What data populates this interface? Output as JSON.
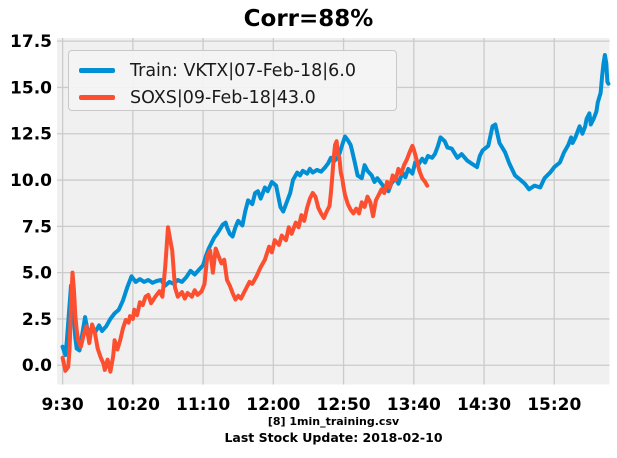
{
  "title": "Corr=88%",
  "footer": {
    "line1": "[8] 1min_training.csv",
    "line2": "Last Stock Update: 2018-02-10"
  },
  "legend": {
    "position": "upper-left",
    "entries": [
      {
        "label": "Train: VKTX|07-Feb-18|6.0",
        "color": "#008fd5"
      },
      {
        "label": "SOXS|09-Feb-18|43.0",
        "color": "#fc4f30"
      }
    ]
  },
  "chart_data": {
    "type": "line",
    "title": "Corr=88%",
    "xlabel": "[8] 1min_training.csv\nLast Stock Update: 2018-02-10",
    "ylabel": "",
    "grid": true,
    "x_unit": "minutes since 9:30",
    "x_tick_minutes": [
      0,
      50,
      100,
      150,
      200,
      250,
      300,
      350
    ],
    "x_tick_labels": [
      "9:30",
      "10:20",
      "11:10",
      "12:00",
      "12:50",
      "13:40",
      "14:30",
      "15:20"
    ],
    "y_ticks": [
      0,
      2.5,
      5,
      7.5,
      10,
      12.5,
      15,
      17.5
    ],
    "y_tick_labels": [
      "0.0",
      "2.5",
      "5.0",
      "7.5",
      "10.0",
      "12.5",
      "15.0",
      "17.5"
    ],
    "xlim_minutes": [
      -4,
      389.3
    ],
    "ylim": [
      -1.04,
      17.67
    ],
    "style": {
      "axes_bg": "#f0f0f0",
      "grid_color": "#cbcbcb",
      "figure_bg": "#ffffff",
      "text_color": "#000000",
      "line_width": 4
    },
    "series": [
      {
        "name": "Train: VKTX|07-Feb-18|6.0",
        "color": "#008fd5",
        "points": [
          [
            0,
            1.0
          ],
          [
            2,
            0.55
          ],
          [
            3,
            1.3
          ],
          [
            5,
            3.3
          ],
          [
            6,
            4.3
          ],
          [
            7,
            3.3
          ],
          [
            9,
            1.5
          ],
          [
            10,
            0.9
          ],
          [
            12,
            0.8
          ],
          [
            14,
            1.7
          ],
          [
            16,
            2.6
          ],
          [
            18,
            1.8
          ],
          [
            21,
            2.0
          ],
          [
            23,
            1.75
          ],
          [
            26,
            2.15
          ],
          [
            28,
            1.85
          ],
          [
            31,
            2.1
          ],
          [
            34,
            2.5
          ],
          [
            37,
            2.8
          ],
          [
            40,
            3.0
          ],
          [
            43,
            3.5
          ],
          [
            46,
            4.2
          ],
          [
            49,
            4.8
          ],
          [
            52,
            4.5
          ],
          [
            55,
            4.65
          ],
          [
            58,
            4.5
          ],
          [
            61,
            4.6
          ],
          [
            64,
            4.45
          ],
          [
            67,
            4.55
          ],
          [
            70,
            4.6
          ],
          [
            73,
            4.3
          ],
          [
            76,
            4.5
          ],
          [
            79,
            4.4
          ],
          [
            82,
            4.6
          ],
          [
            85,
            4.5
          ],
          [
            88,
            4.75
          ],
          [
            91,
            5.1
          ],
          [
            94,
            4.9
          ],
          [
            97,
            5.15
          ],
          [
            100,
            5.4
          ],
          [
            102,
            5.9
          ],
          [
            104,
            6.3
          ],
          [
            106,
            6.6
          ],
          [
            108,
            6.9
          ],
          [
            110,
            7.1
          ],
          [
            112,
            7.35
          ],
          [
            114,
            7.6
          ],
          [
            116,
            7.7
          ],
          [
            117,
            7.45
          ],
          [
            119,
            7.1
          ],
          [
            121,
            6.95
          ],
          [
            123,
            7.45
          ],
          [
            125,
            7.8
          ],
          [
            128,
            7.55
          ],
          [
            130,
            8.3
          ],
          [
            132,
            8.9
          ],
          [
            135,
            8.7
          ],
          [
            137,
            9.3
          ],
          [
            139,
            9.4
          ],
          [
            141,
            9.0
          ],
          [
            144,
            9.6
          ],
          [
            146,
            9.4
          ],
          [
            149,
            9.9
          ],
          [
            152,
            9.7
          ],
          [
            153,
            9.3
          ],
          [
            155,
            8.55
          ],
          [
            157,
            8.3
          ],
          [
            160,
            8.9
          ],
          [
            162,
            9.3
          ],
          [
            164,
            10.0
          ],
          [
            167,
            10.4
          ],
          [
            169,
            10.25
          ],
          [
            171,
            10.5
          ],
          [
            174,
            10.35
          ],
          [
            176,
            10.6
          ],
          [
            178,
            10.4
          ],
          [
            181,
            10.55
          ],
          [
            184,
            10.45
          ],
          [
            187,
            10.7
          ],
          [
            189,
            10.9
          ],
          [
            191,
            11.2
          ],
          [
            193,
            11.0
          ],
          [
            195,
            11.15
          ],
          [
            197,
            11.4
          ],
          [
            199,
            11.9
          ],
          [
            201,
            12.35
          ],
          [
            203,
            12.15
          ],
          [
            205,
            11.9
          ],
          [
            206,
            11.6
          ],
          [
            208,
            10.95
          ],
          [
            210,
            10.25
          ],
          [
            213,
            10.1
          ],
          [
            215,
            10.8
          ],
          [
            217,
            10.5
          ],
          [
            220,
            10.25
          ],
          [
            222,
            9.9
          ],
          [
            224,
            10.1
          ],
          [
            227,
            9.8
          ],
          [
            229,
            9.6
          ],
          [
            232,
            9.4
          ],
          [
            234,
            9.8
          ],
          [
            237,
            10.1
          ],
          [
            239,
            9.8
          ],
          [
            242,
            10.4
          ],
          [
            244,
            10.15
          ],
          [
            246,
            10.6
          ],
          [
            249,
            10.35
          ],
          [
            251,
            10.95
          ],
          [
            253,
            10.8
          ],
          [
            256,
            11.15
          ],
          [
            258,
            10.95
          ],
          [
            260,
            11.3
          ],
          [
            263,
            11.2
          ],
          [
            265,
            11.4
          ],
          [
            267,
            11.8
          ],
          [
            269,
            12.3
          ],
          [
            272,
            12.1
          ],
          [
            274,
            11.75
          ],
          [
            277,
            11.7
          ],
          [
            281,
            11.2
          ],
          [
            284,
            11.4
          ],
          [
            288,
            11.05
          ],
          [
            291,
            10.9
          ],
          [
            295,
            10.7
          ],
          [
            297,
            11.3
          ],
          [
            299,
            11.6
          ],
          [
            303,
            11.85
          ],
          [
            306,
            12.9
          ],
          [
            308,
            13.0
          ],
          [
            311,
            12.0
          ],
          [
            315,
            11.5
          ],
          [
            318,
            10.9
          ],
          [
            322,
            10.25
          ],
          [
            326,
            10.0
          ],
          [
            329,
            9.8
          ],
          [
            332,
            9.5
          ],
          [
            336,
            9.7
          ],
          [
            340,
            9.6
          ],
          [
            343,
            10.1
          ],
          [
            347,
            10.4
          ],
          [
            350,
            10.7
          ],
          [
            354,
            10.95
          ],
          [
            357,
            11.5
          ],
          [
            360,
            11.9
          ],
          [
            362,
            12.3
          ],
          [
            363,
            12.0
          ],
          [
            365,
            12.3
          ],
          [
            367,
            12.7
          ],
          [
            368,
            12.9
          ],
          [
            370,
            12.5
          ],
          [
            372,
            12.9
          ],
          [
            373,
            13.3
          ],
          [
            375,
            13.6
          ],
          [
            376,
            13.0
          ],
          [
            378,
            13.3
          ],
          [
            380,
            13.7
          ],
          [
            381,
            14.2
          ],
          [
            383,
            14.7
          ],
          [
            384,
            15.6
          ],
          [
            385,
            16.3
          ],
          [
            386,
            16.75
          ],
          [
            387,
            16.3
          ],
          [
            387.8,
            15.3
          ],
          [
            388.5,
            15.2
          ]
        ]
      },
      {
        "name": "SOXS|09-Feb-18|43.0",
        "color": "#fc4f30",
        "points": [
          [
            0,
            0.4
          ],
          [
            1,
            0.05
          ],
          [
            2,
            -0.3
          ],
          [
            4,
            -0.1
          ],
          [
            5,
            0.9
          ],
          [
            6,
            3.2
          ],
          [
            7,
            5.0
          ],
          [
            8,
            4.1
          ],
          [
            9,
            2.7
          ],
          [
            10,
            1.9
          ],
          [
            11,
            1.35
          ],
          [
            13,
            1.0
          ],
          [
            15,
            1.65
          ],
          [
            17,
            2.1
          ],
          [
            19,
            1.2
          ],
          [
            21,
            2.2
          ],
          [
            23,
            1.75
          ],
          [
            25,
            0.9
          ],
          [
            27,
            0.45
          ],
          [
            29,
            0.1
          ],
          [
            30,
            -0.25
          ],
          [
            32,
            0.3
          ],
          [
            34,
            -0.35
          ],
          [
            36,
            0.5
          ],
          [
            37,
            1.35
          ],
          [
            39,
            0.85
          ],
          [
            41,
            1.35
          ],
          [
            43,
            2.0
          ],
          [
            45,
            2.45
          ],
          [
            47,
            2.3
          ],
          [
            48,
            2.65
          ],
          [
            50,
            2.5
          ],
          [
            51,
            3.0
          ],
          [
            53,
            2.7
          ],
          [
            55,
            3.4
          ],
          [
            57,
            3.25
          ],
          [
            59,
            3.7
          ],
          [
            61,
            3.8
          ],
          [
            63,
            3.35
          ],
          [
            66,
            3.7
          ],
          [
            69,
            4.0
          ],
          [
            71,
            3.7
          ],
          [
            73,
            5.3
          ],
          [
            75,
            7.45
          ],
          [
            77,
            6.6
          ],
          [
            78,
            6.2
          ],
          [
            80,
            4.2
          ],
          [
            82,
            3.7
          ],
          [
            85,
            3.95
          ],
          [
            87,
            3.6
          ],
          [
            89,
            3.9
          ],
          [
            92,
            3.7
          ],
          [
            94,
            4.05
          ],
          [
            96,
            3.8
          ],
          [
            99,
            4.0
          ],
          [
            101,
            4.4
          ],
          [
            103,
            5.9
          ],
          [
            105,
            6.2
          ],
          [
            107,
            5.0
          ],
          [
            109,
            6.3
          ],
          [
            111,
            5.9
          ],
          [
            113,
            5.5
          ],
          [
            115,
            5.7
          ],
          [
            117,
            4.6
          ],
          [
            119,
            4.3
          ],
          [
            121,
            3.9
          ],
          [
            123,
            3.55
          ],
          [
            125,
            3.75
          ],
          [
            127,
            3.6
          ],
          [
            129,
            3.9
          ],
          [
            131,
            4.2
          ],
          [
            133,
            4.5
          ],
          [
            135,
            4.4
          ],
          [
            138,
            4.8
          ],
          [
            141,
            5.3
          ],
          [
            144,
            5.7
          ],
          [
            147,
            6.4
          ],
          [
            149,
            6.1
          ],
          [
            151,
            6.75
          ],
          [
            154,
            6.5
          ],
          [
            156,
            7.0
          ],
          [
            159,
            6.75
          ],
          [
            161,
            7.45
          ],
          [
            163,
            7.1
          ],
          [
            166,
            7.7
          ],
          [
            168,
            7.45
          ],
          [
            170,
            8.1
          ],
          [
            172,
            7.8
          ],
          [
            174,
            8.5
          ],
          [
            176,
            9.0
          ],
          [
            178,
            9.3
          ],
          [
            180,
            9.1
          ],
          [
            182,
            8.5
          ],
          [
            184,
            8.2
          ],
          [
            186,
            7.95
          ],
          [
            188,
            8.3
          ],
          [
            190,
            8.6
          ],
          [
            191,
            9.3
          ],
          [
            192,
            10.2
          ],
          [
            193,
            11.2
          ],
          [
            194,
            11.9
          ],
          [
            195,
            12.1
          ],
          [
            196,
            11.4
          ],
          [
            197,
            11.2
          ],
          [
            198,
            10.4
          ],
          [
            199,
            10.1
          ],
          [
            200,
            9.6
          ],
          [
            201,
            9.2
          ],
          [
            203,
            8.7
          ],
          [
            205,
            8.4
          ],
          [
            207,
            8.2
          ],
          [
            209,
            8.45
          ],
          [
            211,
            8.2
          ],
          [
            213,
            8.8
          ],
          [
            215,
            8.55
          ],
          [
            217,
            9.1
          ],
          [
            219,
            8.8
          ],
          [
            221,
            8.05
          ],
          [
            223,
            8.9
          ],
          [
            225,
            9.2
          ],
          [
            227,
            9.5
          ],
          [
            229,
            9.3
          ],
          [
            231,
            9.9
          ],
          [
            233,
            9.6
          ],
          [
            235,
            10.25
          ],
          [
            237,
            10.0
          ],
          [
            239,
            10.6
          ],
          [
            241,
            10.35
          ],
          [
            243,
            10.8
          ],
          [
            245,
            11.1
          ],
          [
            247,
            11.5
          ],
          [
            249,
            11.85
          ],
          [
            250,
            11.65
          ],
          [
            252,
            11.1
          ],
          [
            254,
            10.5
          ],
          [
            256,
            10.1
          ],
          [
            258,
            9.9
          ],
          [
            259.5,
            9.7
          ]
        ]
      }
    ]
  }
}
